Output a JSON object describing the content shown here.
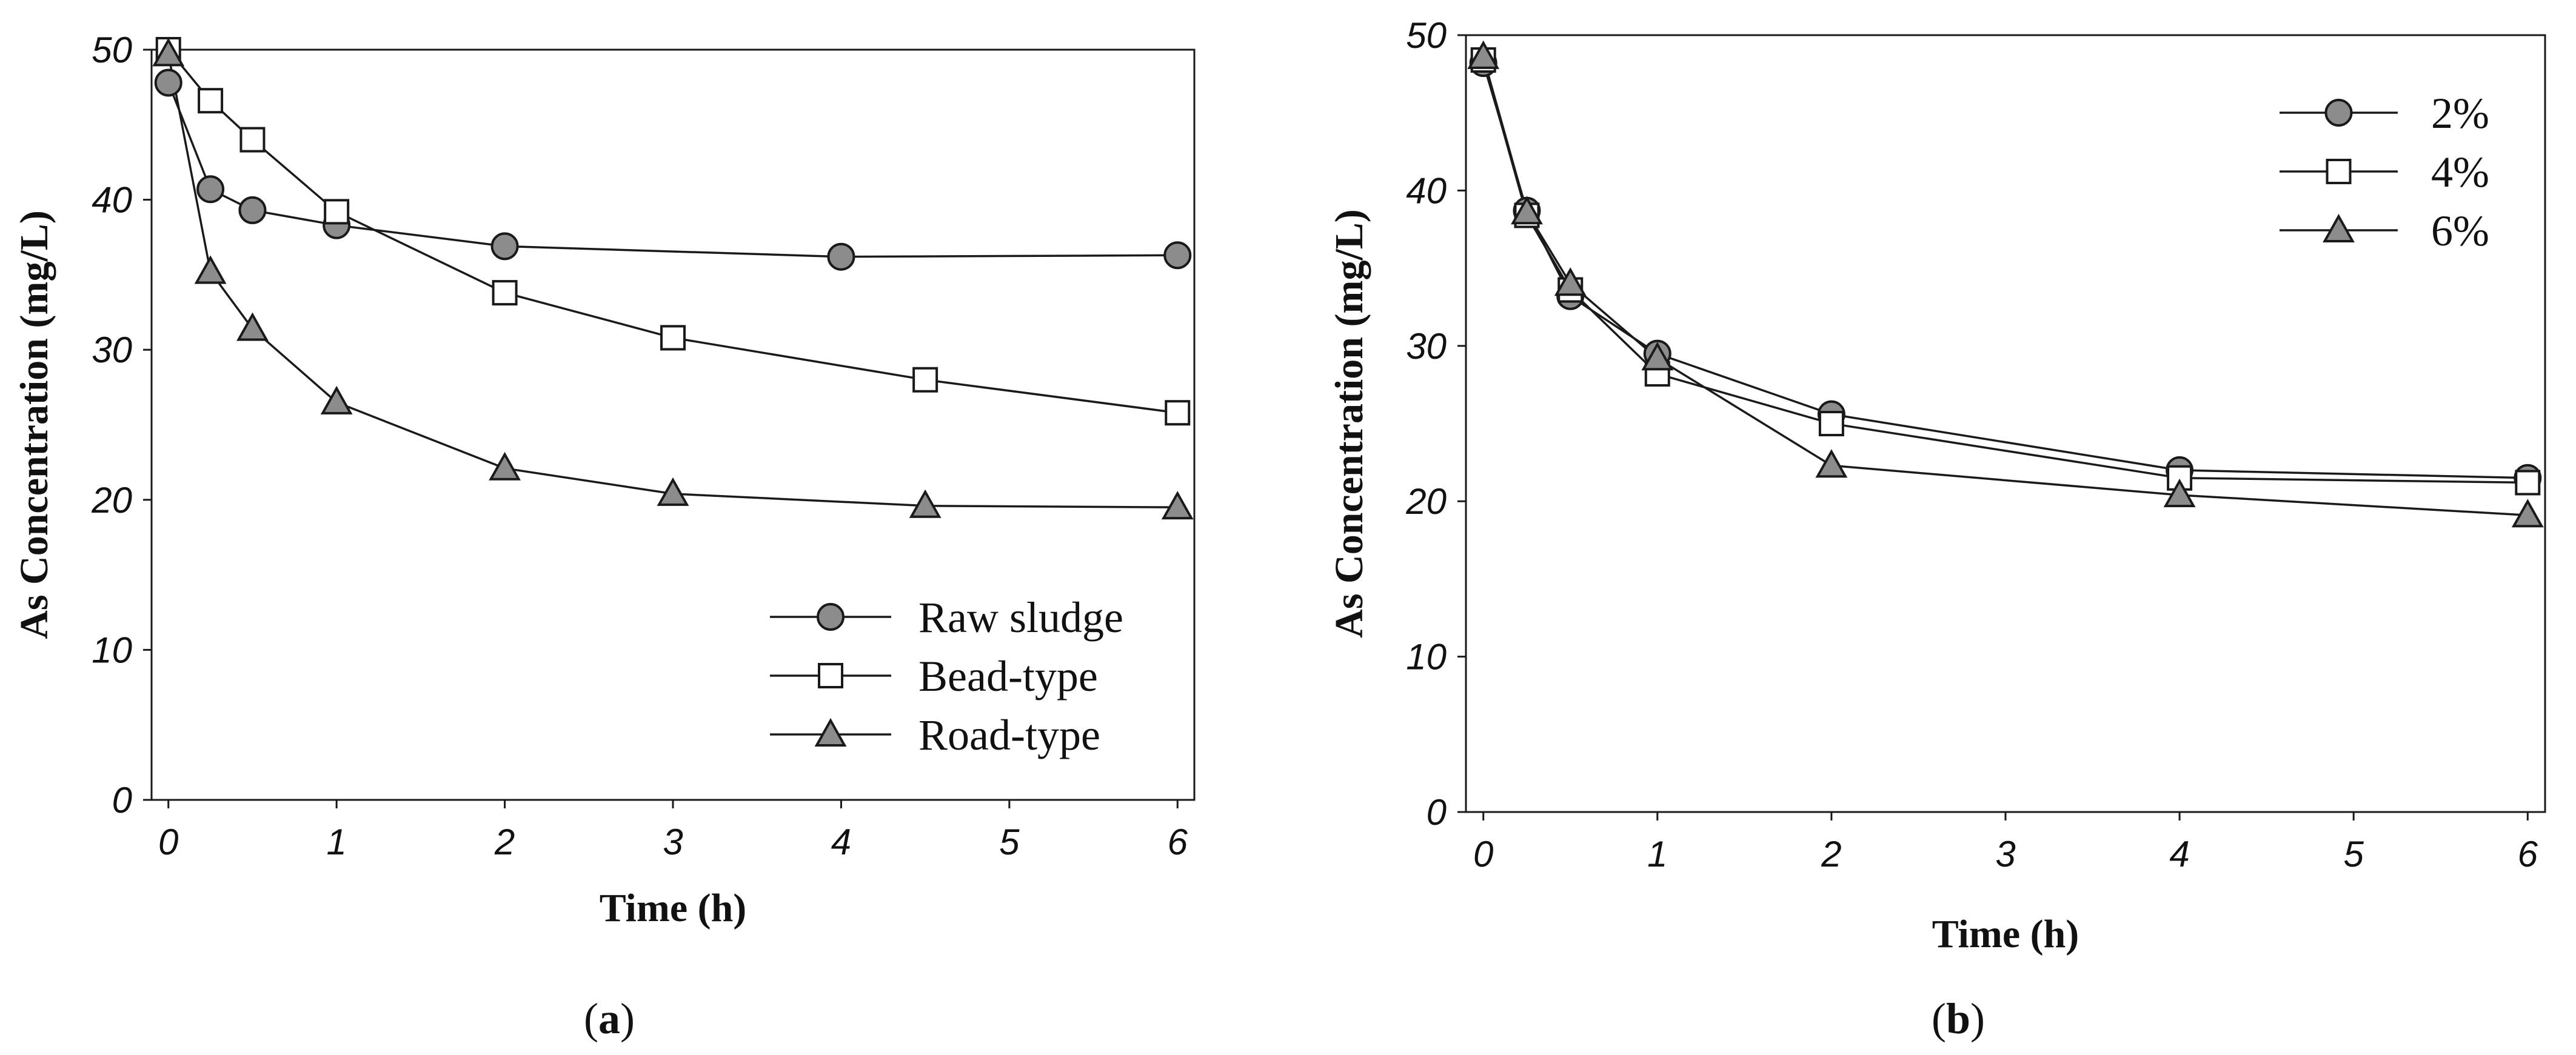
{
  "chart_data": [
    {
      "type": "line",
      "panel_label": "(a)",
      "panel_label_parts": [
        "(",
        "a",
        ")"
      ],
      "title": "",
      "xlabel": "Time (h)",
      "ylabel": "As Concentration (mg/L)",
      "xlim": [
        -0.1,
        6.1
      ],
      "ylim": [
        0,
        50
      ],
      "xticks": [
        0,
        1,
        2,
        3,
        4,
        5,
        6
      ],
      "yticks": [
        0,
        10,
        20,
        30,
        40,
        50
      ],
      "grid": false,
      "legend_position": "bottom-right",
      "series": [
        {
          "name": "Raw sludge",
          "marker": "circle",
          "fill": "#8c8c8c",
          "x": [
            0,
            0.25,
            0.5,
            1,
            2,
            4,
            6
          ],
          "values": [
            47.8,
            40.7,
            39.3,
            38.3,
            36.9,
            36.2,
            36.3
          ]
        },
        {
          "name": "Bead-type",
          "marker": "square",
          "fill": "#ffffff",
          "x": [
            0,
            0.25,
            0.5,
            1,
            2,
            3,
            4.5,
            6
          ],
          "values": [
            50.0,
            46.6,
            44.0,
            39.2,
            33.8,
            30.8,
            28.0,
            25.8
          ]
        },
        {
          "name": "Road-type",
          "marker": "triangle",
          "fill": "#8c8c8c",
          "x": [
            0,
            0.25,
            0.5,
            1,
            2,
            3,
            4.5,
            6
          ],
          "values": [
            49.7,
            35.2,
            31.4,
            26.5,
            22.1,
            20.4,
            19.6,
            19.5
          ]
        }
      ]
    },
    {
      "type": "line",
      "panel_label": "(b)",
      "panel_label_parts": [
        "(",
        "b",
        ")"
      ],
      "title": "",
      "xlabel": "Time (h)",
      "ylabel": "As Concentration (mg/L)",
      "xlim": [
        -0.1,
        6.1
      ],
      "ylim": [
        0,
        50
      ],
      "xticks": [
        0,
        1,
        2,
        3,
        4,
        5,
        6
      ],
      "yticks": [
        0,
        10,
        20,
        30,
        40,
        50
      ],
      "grid": false,
      "legend_position": "top-right",
      "series": [
        {
          "name": "2%",
          "marker": "circle",
          "fill": "#8c8c8c",
          "x": [
            0,
            0.25,
            0.5,
            1,
            2,
            4,
            6
          ],
          "values": [
            48.2,
            38.7,
            33.2,
            29.5,
            25.6,
            22.0,
            21.5
          ]
        },
        {
          "name": "4%",
          "marker": "square",
          "fill": "#ffffff",
          "x": [
            0,
            0.25,
            0.5,
            1,
            2,
            4,
            6
          ],
          "values": [
            48.4,
            38.4,
            33.6,
            28.2,
            25.0,
            21.5,
            21.2
          ]
        },
        {
          "name": "6%",
          "marker": "triangle",
          "fill": "#8c8c8c",
          "x": [
            0,
            0.25,
            0.5,
            1,
            2,
            4,
            6
          ],
          "values": [
            48.6,
            38.6,
            34.0,
            29.2,
            22.3,
            20.4,
            19.1
          ]
        }
      ]
    }
  ]
}
